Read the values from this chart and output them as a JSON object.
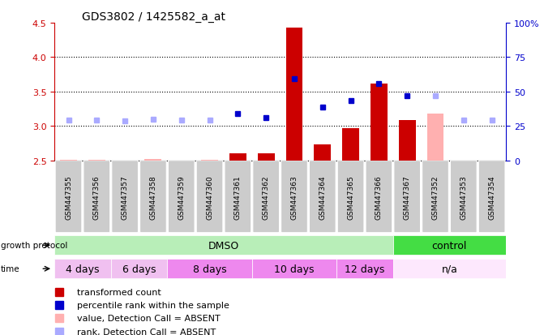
{
  "title": "GDS3802 / 1425582_a_at",
  "samples": [
    "GSM447355",
    "GSM447356",
    "GSM447357",
    "GSM447358",
    "GSM447359",
    "GSM447360",
    "GSM447361",
    "GSM447362",
    "GSM447363",
    "GSM447364",
    "GSM447365",
    "GSM447366",
    "GSM447367",
    "GSM447352",
    "GSM447353",
    "GSM447354"
  ],
  "bar_values": [
    null,
    null,
    null,
    null,
    null,
    null,
    2.6,
    2.6,
    4.43,
    2.73,
    2.97,
    3.62,
    3.08,
    null,
    null,
    null
  ],
  "bar_absent_values": [
    2.51,
    2.51,
    2.5,
    2.52,
    2.5,
    2.51,
    null,
    null,
    null,
    null,
    null,
    null,
    null,
    3.18,
    null,
    null
  ],
  "dot_values": [
    null,
    null,
    null,
    null,
    null,
    null,
    3.18,
    3.12,
    3.69,
    3.27,
    3.37,
    3.62,
    3.44,
    null,
    null,
    null
  ],
  "dot_absent_values": [
    3.08,
    3.08,
    3.07,
    3.1,
    3.08,
    3.08,
    null,
    null,
    null,
    null,
    null,
    null,
    null,
    3.44,
    3.08,
    3.08
  ],
  "ylim": [
    2.5,
    4.5
  ],
  "y_ticks": [
    2.5,
    3.0,
    3.5,
    4.0,
    4.5
  ],
  "y2_ticks": [
    0,
    25,
    50,
    75,
    100
  ],
  "bar_color": "#cc0000",
  "bar_absent_color": "#ffb0b0",
  "dot_color": "#0000cc",
  "dot_absent_color": "#aaaaff",
  "growth_protocol_label": "growth protocol",
  "time_label": "time",
  "protocol_groups": [
    {
      "label": "DMSO",
      "start": 0,
      "end": 12,
      "color": "#b8eeb8"
    },
    {
      "label": "control",
      "start": 12,
      "end": 16,
      "color": "#44dd44"
    }
  ],
  "time_groups": [
    {
      "label": "4 days",
      "start": 0,
      "end": 2,
      "color": "#f0c0f0"
    },
    {
      "label": "6 days",
      "start": 2,
      "end": 4,
      "color": "#f0c0f0"
    },
    {
      "label": "8 days",
      "start": 4,
      "end": 7,
      "color": "#ee88ee"
    },
    {
      "label": "10 days",
      "start": 7,
      "end": 10,
      "color": "#ee88ee"
    },
    {
      "label": "12 days",
      "start": 10,
      "end": 12,
      "color": "#ee88ee"
    },
    {
      "label": "n/a",
      "start": 12,
      "end": 16,
      "color": "#fde8fd"
    }
  ],
  "xlabel_color": "#cc0000",
  "y2label_color": "#0000cc",
  "legend_items": [
    {
      "label": "transformed count",
      "color": "#cc0000"
    },
    {
      "label": "percentile rank within the sample",
      "color": "#0000cc"
    },
    {
      "label": "value, Detection Call = ABSENT",
      "color": "#ffb0b0"
    },
    {
      "label": "rank, Detection Call = ABSENT",
      "color": "#aaaaff"
    }
  ]
}
